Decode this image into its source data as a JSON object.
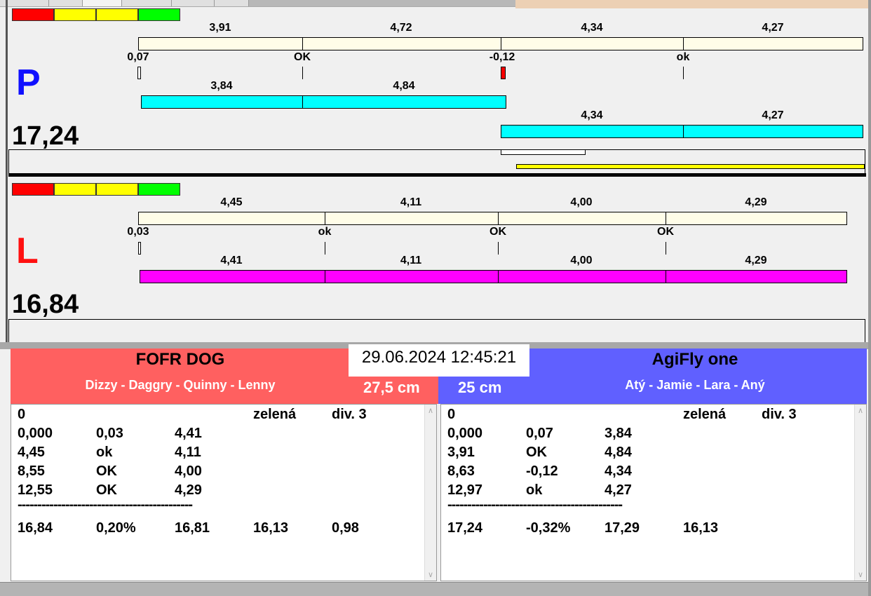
{
  "colors": {
    "red": "#ff0000",
    "yellow": "#ffff00",
    "green": "#00ff00",
    "cream": "#fffde8",
    "cyan": "#00ffff",
    "magenta": "#ff00ff",
    "team_left": "#ff6060",
    "team_right": "#6060ff"
  },
  "P": {
    "letter": "P",
    "total": "17,24",
    "top_times": [
      "3,91",
      "4,72",
      "4,34",
      "4,27"
    ],
    "reactions": [
      "0,07",
      "OK",
      "-0,12",
      "ok"
    ],
    "run1": [
      "3,84",
      "4,84"
    ],
    "run2": [
      "4,34",
      "4,27"
    ]
  },
  "L": {
    "letter": "L",
    "total": "16,84",
    "top_times": [
      "4,45",
      "4,11",
      "4,00",
      "4,29"
    ],
    "reactions": [
      "0,03",
      "ok",
      "OK",
      "OK"
    ],
    "run1": [
      "4,41",
      "4,11",
      "4,00",
      "4,29"
    ]
  },
  "datetime": "29.06.2024 12:45:21",
  "left_team": {
    "name": "FOFR DOG",
    "dogs": "Dizzy - Daggry - Quinny - Lenny",
    "height": "27,5 cm",
    "header": [
      "0",
      "zelená",
      "div. 3"
    ],
    "rows": [
      [
        "0,000",
        "0,03",
        "4,41"
      ],
      [
        "4,45",
        "ok",
        "4,11"
      ],
      [
        "8,55",
        "OK",
        "4,00"
      ],
      [
        "12,55",
        "OK",
        "4,29"
      ]
    ],
    "separator": "--------------------------------------------",
    "summary": [
      "16,84",
      "0,20%",
      "16,81",
      "16,13",
      "0,98"
    ]
  },
  "right_team": {
    "name": "AgiFly one",
    "dogs": "Atý - Jamie - Lara - Aný",
    "height": "25 cm",
    "header": [
      "0",
      "zelená",
      "div. 3"
    ],
    "rows": [
      [
        "0,000",
        "0,07",
        "3,84"
      ],
      [
        "3,91",
        "OK",
        "4,84"
      ],
      [
        "8,63",
        "-0,12",
        "4,34"
      ],
      [
        "12,97",
        "ok",
        "4,27"
      ]
    ],
    "separator": "--------------------------------------------",
    "summary": [
      "17,24",
      "-0,32%",
      "17,29",
      "16,13"
    ]
  }
}
